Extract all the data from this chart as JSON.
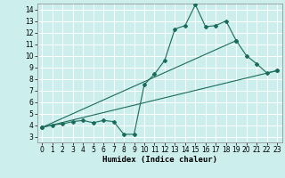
{
  "title": "",
  "xlabel": "Humidex (Indice chaleur)",
  "bg_color": "#cceeed",
  "grid_color": "#ffffff",
  "line_color": "#1a6b5a",
  "xlim": [
    -0.5,
    23.5
  ],
  "ylim": [
    2.5,
    14.5
  ],
  "xticks": [
    0,
    1,
    2,
    3,
    4,
    5,
    6,
    7,
    8,
    9,
    10,
    11,
    12,
    13,
    14,
    15,
    16,
    17,
    18,
    19,
    20,
    21,
    22,
    23
  ],
  "yticks": [
    3,
    4,
    5,
    6,
    7,
    8,
    9,
    10,
    11,
    12,
    13,
    14
  ],
  "series1_x": [
    0,
    1,
    2,
    3,
    4,
    5,
    6,
    7,
    8,
    9,
    10,
    11,
    12,
    13,
    14,
    15,
    16,
    17,
    18,
    19,
    20,
    21,
    22,
    23
  ],
  "series1_y": [
    3.8,
    4.0,
    4.1,
    4.3,
    4.4,
    4.2,
    4.4,
    4.3,
    3.2,
    3.2,
    7.5,
    8.4,
    9.6,
    12.3,
    12.6,
    14.4,
    12.5,
    12.6,
    13.0,
    11.3,
    10.0,
    9.3,
    8.5,
    8.7
  ],
  "series2_x": [
    0,
    23
  ],
  "series2_y": [
    3.8,
    8.7
  ],
  "series3_x": [
    0,
    19
  ],
  "series3_y": [
    3.8,
    11.3
  ]
}
